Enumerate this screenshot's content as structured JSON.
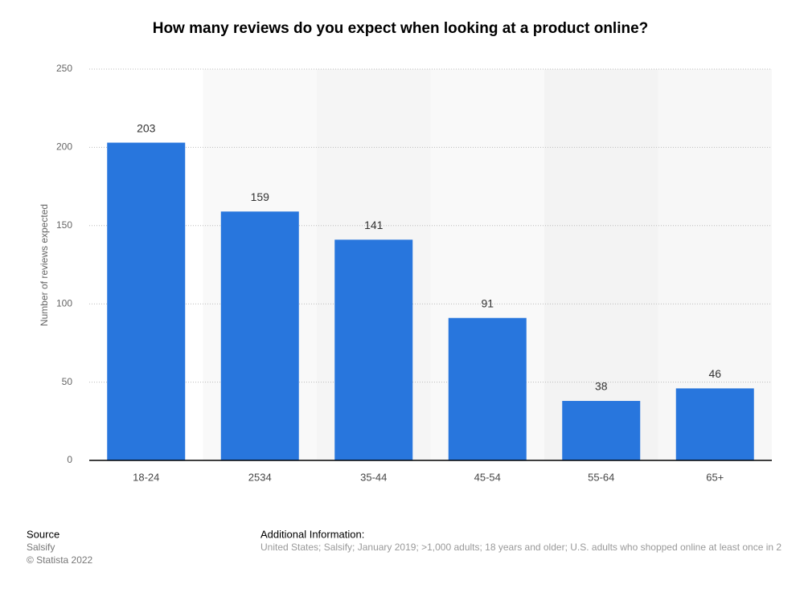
{
  "chart_data": {
    "type": "bar",
    "title": "How many reviews do you expect when looking at a product online?",
    "y_label": "Number of reviews expected",
    "categories": [
      "18-24",
      "2534",
      "35-44",
      "45-54",
      "55-64",
      "65+"
    ],
    "values": [
      203,
      159,
      141,
      91,
      38,
      46
    ],
    "color": "#2876dd",
    "ylim": [
      0,
      250
    ],
    "yticks": [
      0,
      50,
      100,
      150,
      200,
      250
    ],
    "grid": true
  },
  "footer": {
    "source_title": "Source",
    "source": "Salsify",
    "copyright": "© Statista 2022",
    "info_title": "Additional Information:",
    "info": "United States; Salsify; January 2019; >1,000 adults; 18 years and older; U.S. adults who shopped online at least once in 2"
  }
}
